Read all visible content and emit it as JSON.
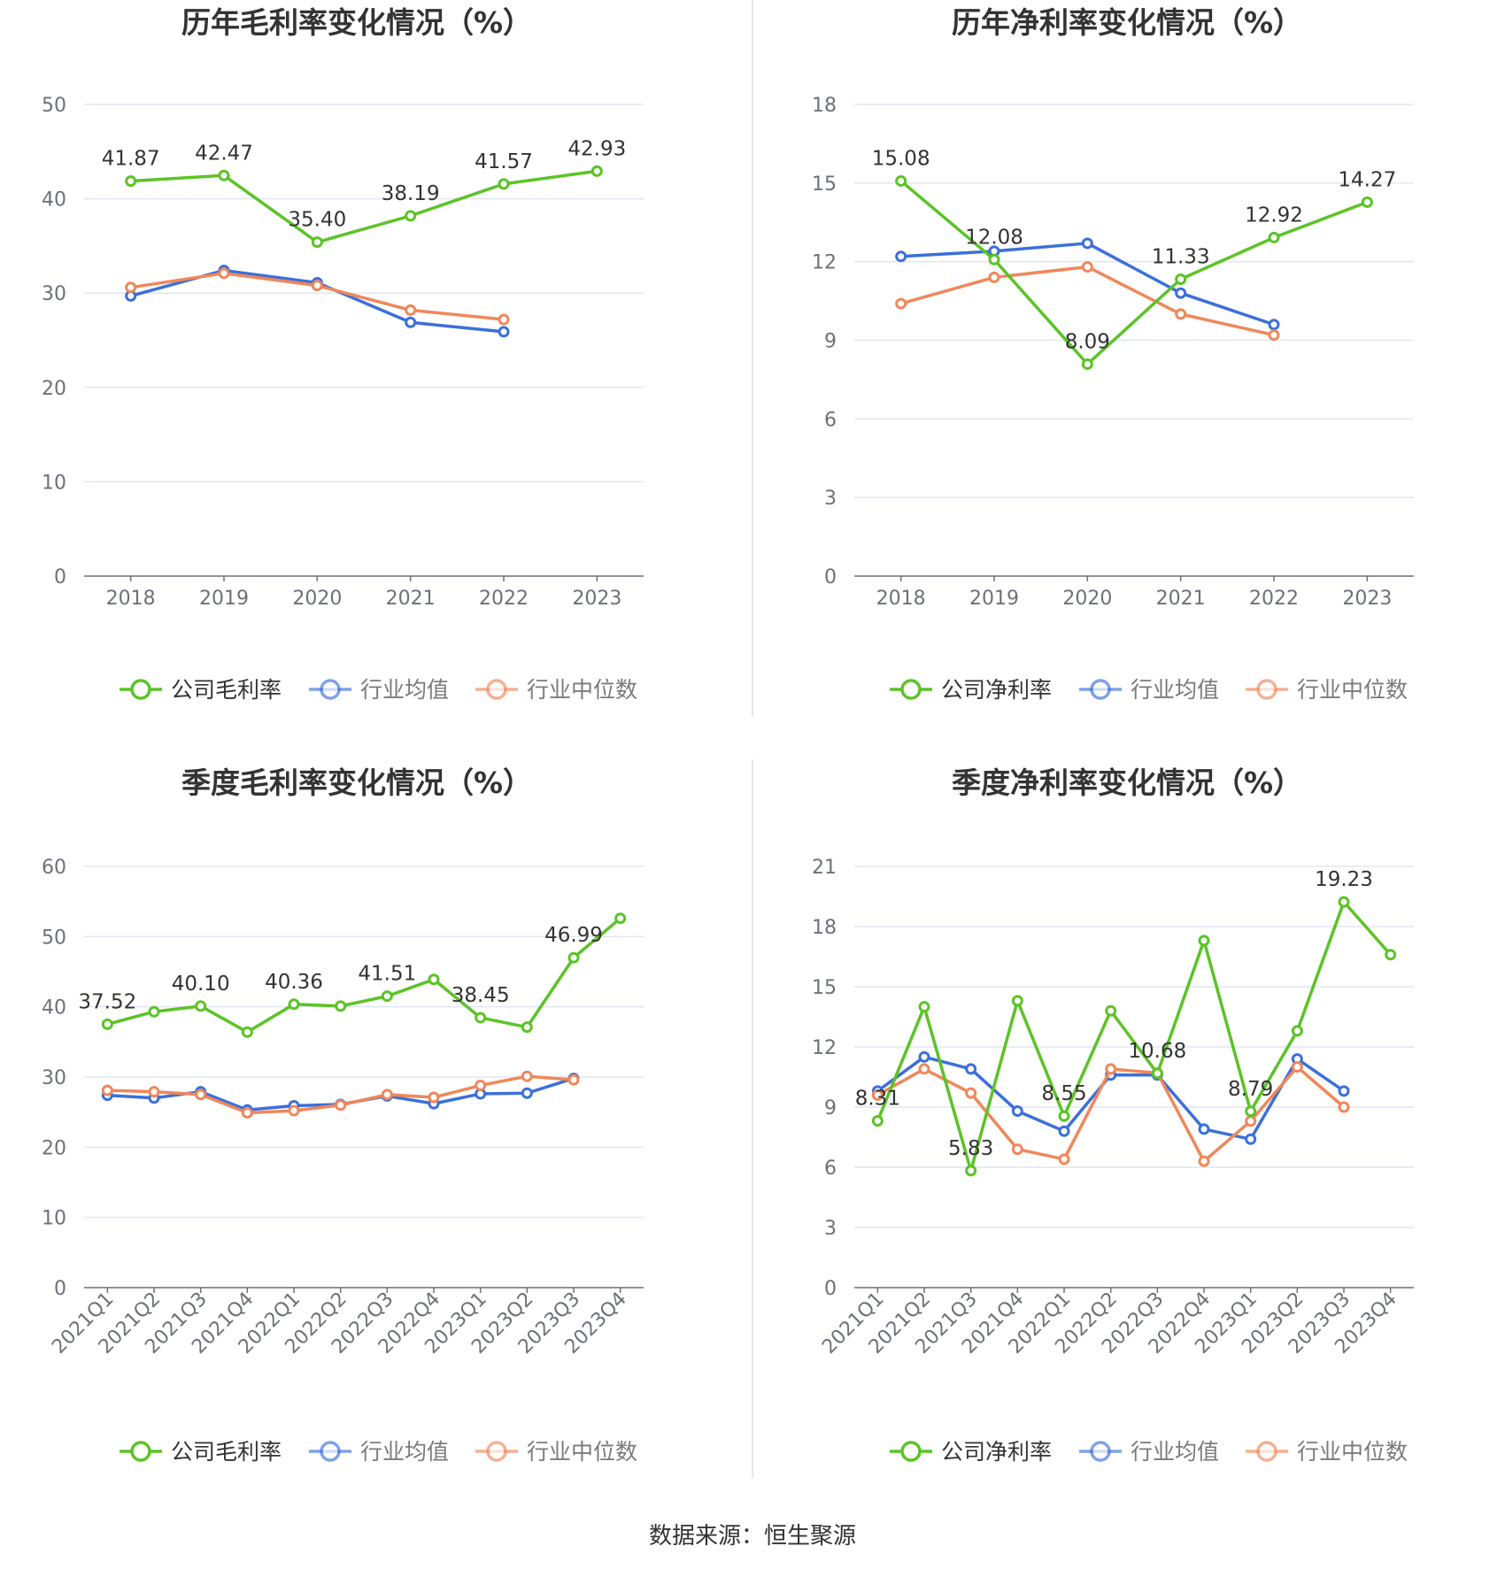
{
  "source": "数据来源：恒生聚源",
  "colors": {
    "company": "#5bc326",
    "avg": "#3b6fdb",
    "median": "#f0875a"
  },
  "chart_data": [
    {
      "type": "line",
      "title": "历年毛利率变化情况（%）",
      "categories": [
        "2018",
        "2019",
        "2020",
        "2021",
        "2022",
        "2023"
      ],
      "yticks": [
        "0",
        "10",
        "20",
        "30",
        "40",
        "50"
      ],
      "ylim": [
        0,
        50
      ],
      "series": [
        {
          "name": "公司毛利率",
          "values": [
            41.87,
            42.47,
            35.4,
            38.19,
            41.57,
            42.93
          ]
        },
        {
          "name": "行业均值",
          "values": [
            29.7,
            32.4,
            31.1,
            26.9,
            25.9,
            null
          ]
        },
        {
          "name": "行业中位数",
          "values": [
            30.6,
            32.1,
            30.8,
            28.2,
            27.2,
            null
          ]
        }
      ],
      "labels": [
        "41.87",
        "42.47",
        "35.40",
        "38.19",
        "41.57",
        "42.93"
      ],
      "legend": "bottom"
    },
    {
      "type": "line",
      "title": "历年净利率变化情况（%）",
      "categories": [
        "2018",
        "2019",
        "2020",
        "2021",
        "2022",
        "2023"
      ],
      "yticks": [
        "0",
        "3",
        "6",
        "9",
        "12",
        "15",
        "18"
      ],
      "ylim": [
        0,
        18
      ],
      "series": [
        {
          "name": "公司净利率",
          "values": [
            15.08,
            12.08,
            8.09,
            11.33,
            12.92,
            14.27
          ]
        },
        {
          "name": "行业均值",
          "values": [
            12.2,
            12.4,
            12.7,
            10.8,
            9.6,
            null
          ]
        },
        {
          "name": "行业中位数",
          "values": [
            10.4,
            11.4,
            11.8,
            10.0,
            9.2,
            null
          ]
        }
      ],
      "labels": [
        "15.08",
        "12.08",
        "8.09",
        "11.33",
        "12.92",
        "14.27"
      ],
      "legend": "bottom"
    },
    {
      "type": "line",
      "title": "季度毛利率变化情况（%）",
      "categories": [
        "2021Q1",
        "2021Q2",
        "2021Q3",
        "2021Q4",
        "2022Q1",
        "2022Q2",
        "2022Q3",
        "2022Q4",
        "2023Q1",
        "2023Q2",
        "2023Q3",
        "2023Q4"
      ],
      "yticks": [
        "0",
        "10",
        "20",
        "30",
        "40",
        "50",
        "60"
      ],
      "ylim": [
        0,
        60
      ],
      "series": [
        {
          "name": "公司毛利率",
          "values": [
            37.52,
            39.3,
            40.1,
            36.4,
            40.36,
            40.1,
            41.51,
            43.9,
            38.45,
            37.1,
            46.99,
            52.6
          ]
        },
        {
          "name": "行业均值",
          "values": [
            27.4,
            27.0,
            27.9,
            25.3,
            25.9,
            26.1,
            27.3,
            26.2,
            27.6,
            27.7,
            29.8,
            null
          ]
        },
        {
          "name": "行业中位数",
          "values": [
            28.1,
            27.9,
            27.5,
            24.9,
            25.2,
            26.0,
            27.5,
            27.1,
            28.8,
            30.1,
            29.6,
            null
          ]
        }
      ],
      "labels": [
        "37.52",
        "",
        "40.10",
        "",
        "40.36",
        "",
        "41.51",
        "",
        "38.45",
        "",
        "46.99",
        ""
      ],
      "legend": "bottom"
    },
    {
      "type": "line",
      "title": "季度净利率变化情况（%）",
      "categories": [
        "2021Q1",
        "2021Q2",
        "2021Q3",
        "2021Q4",
        "2022Q1",
        "2022Q2",
        "2022Q3",
        "2022Q4",
        "2023Q1",
        "2023Q2",
        "2023Q3",
        "2023Q4"
      ],
      "yticks": [
        "0",
        "3",
        "6",
        "9",
        "12",
        "15",
        "18",
        "21"
      ],
      "ylim": [
        0,
        21
      ],
      "series": [
        {
          "name": "公司净利率",
          "values": [
            8.31,
            14.0,
            5.83,
            14.3,
            8.55,
            13.8,
            10.68,
            17.3,
            8.79,
            12.8,
            19.23,
            16.6
          ]
        },
        {
          "name": "行业均值",
          "values": [
            9.8,
            11.5,
            10.9,
            8.8,
            7.8,
            10.6,
            10.6,
            7.9,
            7.4,
            11.4,
            9.8,
            null
          ]
        },
        {
          "name": "行业中位数",
          "values": [
            9.6,
            10.9,
            9.7,
            6.9,
            6.4,
            10.9,
            10.7,
            6.3,
            8.3,
            11.0,
            9.0,
            null
          ]
        }
      ],
      "labels": [
        "8.31",
        "",
        "5.83",
        "",
        "8.55",
        "",
        "10.68",
        "",
        "8.79",
        "",
        "19.23",
        ""
      ],
      "legend": "bottom"
    }
  ]
}
